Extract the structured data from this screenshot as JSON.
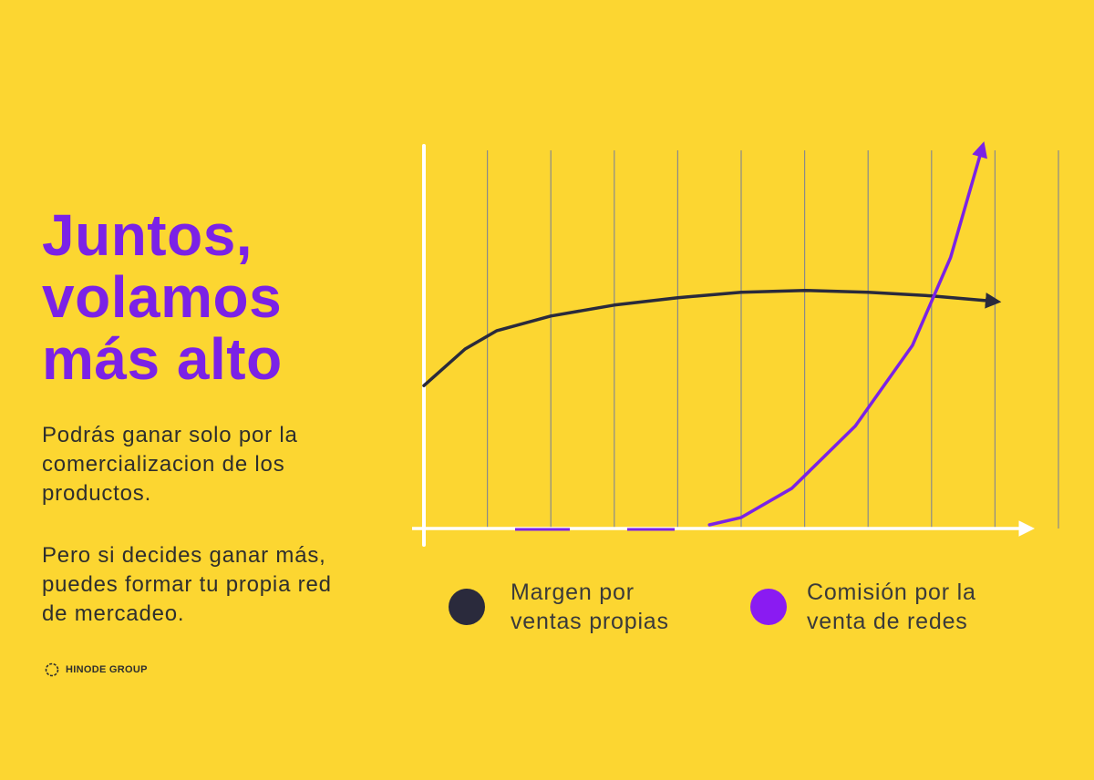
{
  "heading": {
    "line1": "Juntos,",
    "line2": "volamos",
    "line3": "más alto"
  },
  "paragraph1": {
    "line1": "Podrás ganar solo por la",
    "line2": "comercializacion de los",
    "line3": "productos."
  },
  "paragraph2": {
    "line1": "Pero si decides ganar más,",
    "line2": "puedes formar tu propia red",
    "line3": "de mercadeo."
  },
  "brand": {
    "logo_text": "HINODE GROUP"
  },
  "colors": {
    "background": "#FCD631",
    "accent_purple": "#7B22E6",
    "dark_series": "#2A2A3C",
    "axis": "#FFFFFF",
    "grid": "#8A8A8A"
  },
  "legend": {
    "item1": {
      "line1": "Margen por",
      "line2": "ventas propias"
    },
    "item2": {
      "line1": "Comisión por la",
      "line2": "venta de redes"
    }
  },
  "chart_data": {
    "type": "line",
    "title": "",
    "xlabel": "",
    "ylabel": "",
    "grid": "vertical",
    "legend_position": "bottom",
    "xlim": [
      0,
      10
    ],
    "ylim": [
      0,
      10
    ],
    "series": [
      {
        "name": "Margen por ventas propias",
        "color": "#2A2A3C",
        "x": [
          0,
          0.65,
          1.15,
          2,
          3,
          4,
          5,
          6,
          7,
          8,
          9
        ],
        "y": [
          3.9,
          4.9,
          5.4,
          5.8,
          6.1,
          6.3,
          6.45,
          6.5,
          6.45,
          6.35,
          6.2
        ]
      },
      {
        "name": "Comisión por la venta de redes",
        "color": "#7B22E6",
        "x": [
          4.5,
          5,
          5.8,
          6.8,
          7.7,
          8.3,
          8.8
        ],
        "y": [
          0.1,
          0.3,
          1.1,
          2.8,
          5.0,
          7.4,
          10.4
        ]
      }
    ]
  }
}
